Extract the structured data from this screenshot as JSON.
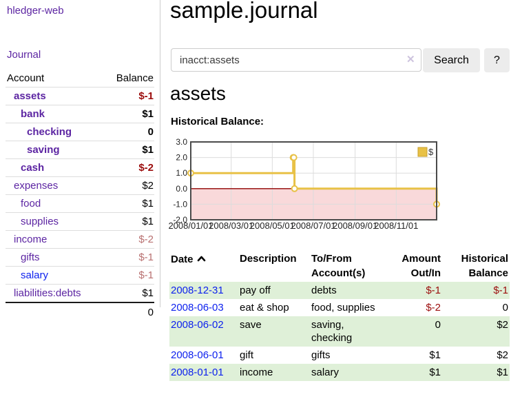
{
  "app": {
    "title": "hledger-web"
  },
  "sidebar": {
    "journal_label": "Journal",
    "headers": {
      "account": "Account",
      "balance": "Balance"
    },
    "accounts": [
      {
        "name": "assets",
        "balance": "$-1",
        "level": 1,
        "bold": true,
        "balance_style": "neg"
      },
      {
        "name": "bank",
        "balance": "$1",
        "level": 2,
        "bold": true,
        "balance_style": ""
      },
      {
        "name": "checking",
        "balance": "0",
        "level": 3,
        "bold": true,
        "balance_style": ""
      },
      {
        "name": "saving",
        "balance": "$1",
        "level": 3,
        "bold": true,
        "balance_style": ""
      },
      {
        "name": "cash",
        "balance": "$-2",
        "level": 2,
        "bold": true,
        "balance_style": "neg"
      },
      {
        "name": "expenses",
        "balance": "$2",
        "level": 1,
        "bold": false,
        "balance_style": ""
      },
      {
        "name": "food",
        "balance": "$1",
        "level": 2,
        "bold": false,
        "balance_style": ""
      },
      {
        "name": "supplies",
        "balance": "$1",
        "level": 2,
        "bold": false,
        "balance_style": ""
      },
      {
        "name": "income",
        "balance": "$-2",
        "level": 1,
        "bold": false,
        "balance_style": "rose"
      },
      {
        "name": "gifts",
        "balance": "$-1",
        "level": 2,
        "bold": false,
        "balance_style": "rose"
      },
      {
        "name": "salary",
        "balance": "$-1",
        "level": 2,
        "bold": false,
        "balance_style": "rose",
        "blue": true
      },
      {
        "name": "liabilities:debts",
        "balance": "$1",
        "level": 1,
        "bold": false,
        "balance_style": ""
      }
    ],
    "total": "0"
  },
  "main": {
    "title": "sample.journal",
    "search": {
      "value": "inacct:assets",
      "clear_icon": "✕",
      "button_label": "Search",
      "help_label": "?"
    },
    "account_heading": "assets",
    "section_label": "Historical Balance:"
  },
  "chart_data": {
    "type": "line",
    "title": "Historical Balance",
    "step": true,
    "series": [
      {
        "name": "$",
        "x": [
          "2008-01-01",
          "2008-06-01",
          "2008-06-02",
          "2008-06-03",
          "2008-12-31"
        ],
        "values": [
          1,
          2,
          2,
          0,
          -1
        ]
      }
    ],
    "ylim": [
      -2,
      3
    ],
    "yticks": [
      3,
      2,
      1,
      0,
      -1,
      -2
    ],
    "xticks": [
      "2008/01/01",
      "2008/03/01",
      "2008/05/01",
      "2008/07/01",
      "2008/09/01",
      "2008/11/01"
    ],
    "x_start": "2008-01-01",
    "x_span_days": 365,
    "grid": true,
    "legend": {
      "label": "$",
      "position": "top-right"
    },
    "colors": {
      "line": "#e8c146",
      "marker_fill": "#ffffff",
      "negative_region": "#f9d9da",
      "zero_line": "#8f0000",
      "grid": "#dcdcdc",
      "border": "#4a4a4a",
      "legend_fill": "#e8c146",
      "legend_border": "#c79f2e"
    }
  },
  "register": {
    "headers": [
      "Date",
      "Description",
      "To/From Account(s)",
      "Amount Out/In",
      "Historical Balance"
    ],
    "sort_icon": "chevron-up",
    "rows": [
      {
        "date": "2008-12-31",
        "description": "pay off",
        "accounts": "debts",
        "amount": "$-1",
        "amount_negative": true,
        "balance": "$-1",
        "balance_negative": true
      },
      {
        "date": "2008-06-03",
        "description": "eat & shop",
        "accounts": "food, supplies",
        "amount": "$-2",
        "amount_negative": true,
        "balance": "0",
        "balance_negative": false
      },
      {
        "date": "2008-06-02",
        "description": "save",
        "accounts": "saving, checking",
        "amount": "0",
        "amount_negative": false,
        "balance": "$2",
        "balance_negative": false
      },
      {
        "date": "2008-06-01",
        "description": "gift",
        "accounts": "gifts",
        "amount": "$1",
        "amount_negative": false,
        "balance": "$2",
        "balance_negative": false
      },
      {
        "date": "2008-01-01",
        "description": "income",
        "accounts": "salary",
        "amount": "$1",
        "amount_negative": false,
        "balance": "$1",
        "balance_negative": false
      }
    ]
  },
  "colors": {
    "link_purple": "#5c25a2",
    "link_blue": "#0b1fee",
    "negative_strong": "#9b0c0c",
    "negative_muted": "#b87070",
    "row_stripe_green": "#dff0d8",
    "button_gray": "#ececec"
  }
}
